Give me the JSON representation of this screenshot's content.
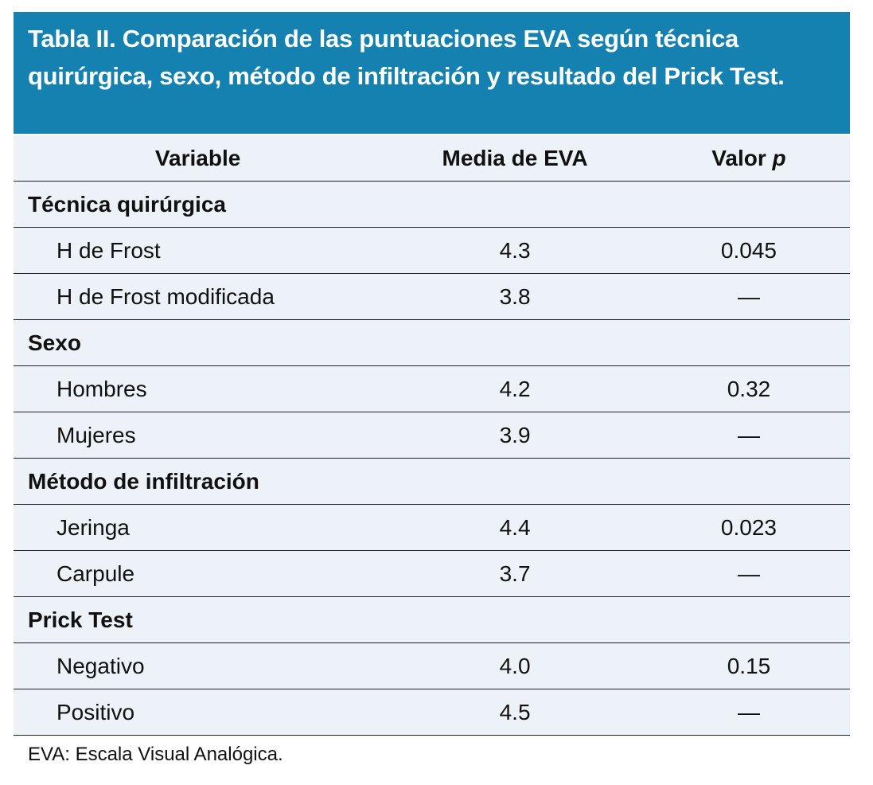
{
  "title": "Tabla II. Comparación de las puntuaciones EVA según técnica quirúrgica, sexo, método de infiltración y resultado del Prick Test.",
  "headers": {
    "variable": "Variable",
    "media": "Media de EVA",
    "valor_prefix": "Valor ",
    "valor_p": "p"
  },
  "groups": [
    {
      "label": "Técnica quirúrgica",
      "rows": [
        {
          "name": "H de Frost",
          "media": "4.3",
          "p": "0.045"
        },
        {
          "name": "H de Frost modificada",
          "media": "3.8",
          "p": "—"
        }
      ]
    },
    {
      "label": "Sexo",
      "rows": [
        {
          "name": "Hombres",
          "media": "4.2",
          "p": "0.32"
        },
        {
          "name": "Mujeres",
          "media": "3.9",
          "p": "—"
        }
      ]
    },
    {
      "label": "Método de infiltración",
      "rows": [
        {
          "name": "Jeringa",
          "media": "4.4",
          "p": "0.023"
        },
        {
          "name": "Carpule",
          "media": "3.7",
          "p": "—"
        }
      ]
    },
    {
      "label": "Prick Test",
      "rows": [
        {
          "name": "Negativo",
          "media": "4.0",
          "p": "0.15"
        },
        {
          "name": "Positivo",
          "media": "4.5",
          "p": "—"
        }
      ]
    }
  ],
  "footnote": "EVA: Escala Visual Analógica.",
  "colors": {
    "header_band": "#1581b0",
    "table_bg": "#edf1f8"
  }
}
